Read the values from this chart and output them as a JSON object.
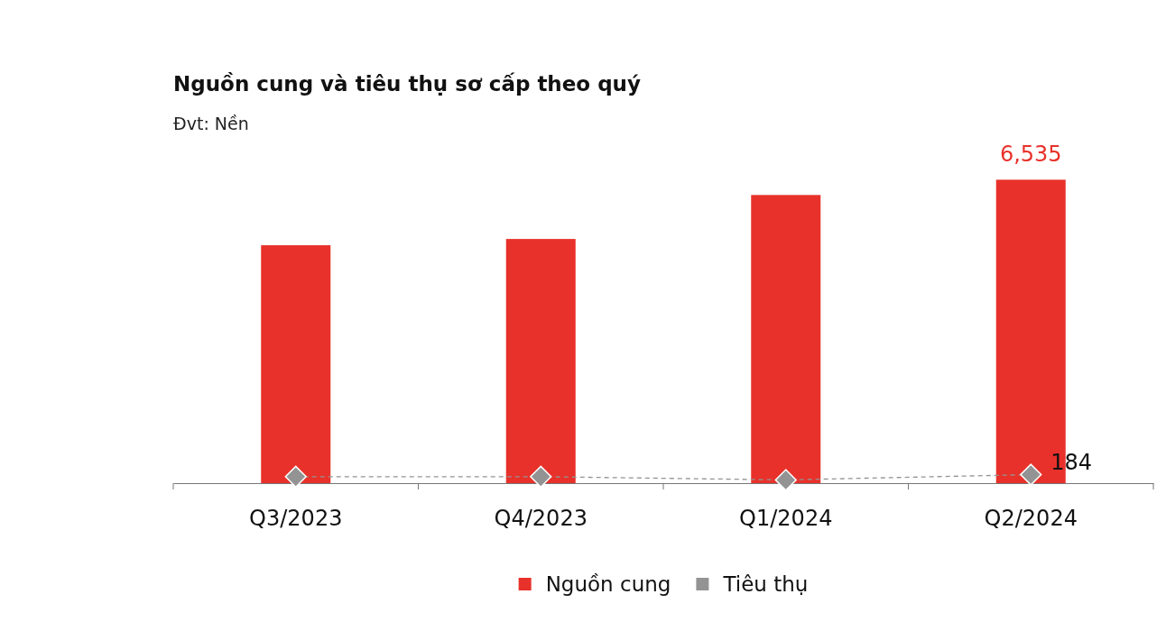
{
  "chart_data": {
    "type": "bar",
    "title": "Nguồn cung và tiêu thụ sơ cấp theo quý",
    "subtitle": "Đvt: Nền",
    "categories": [
      "Q3/2023",
      "Q4/2023",
      "Q1/2024",
      "Q2/2024"
    ],
    "series": [
      {
        "name": "Nguồn cung",
        "color": "#e8312a",
        "values": [
          5124,
          5259,
          6206,
          6535
        ],
        "value_labels": [
          null,
          null,
          null,
          "6,535"
        ]
      },
      {
        "name": "Tiêu thụ",
        "type": "line",
        "color": "#939393",
        "values": [
          140,
          140,
          70,
          184
        ],
        "value_labels": [
          null,
          null,
          null,
          "184"
        ],
        "marker": "diamond",
        "line_style": "dashed"
      }
    ],
    "tick_labels": "x",
    "legend": "bottom"
  }
}
